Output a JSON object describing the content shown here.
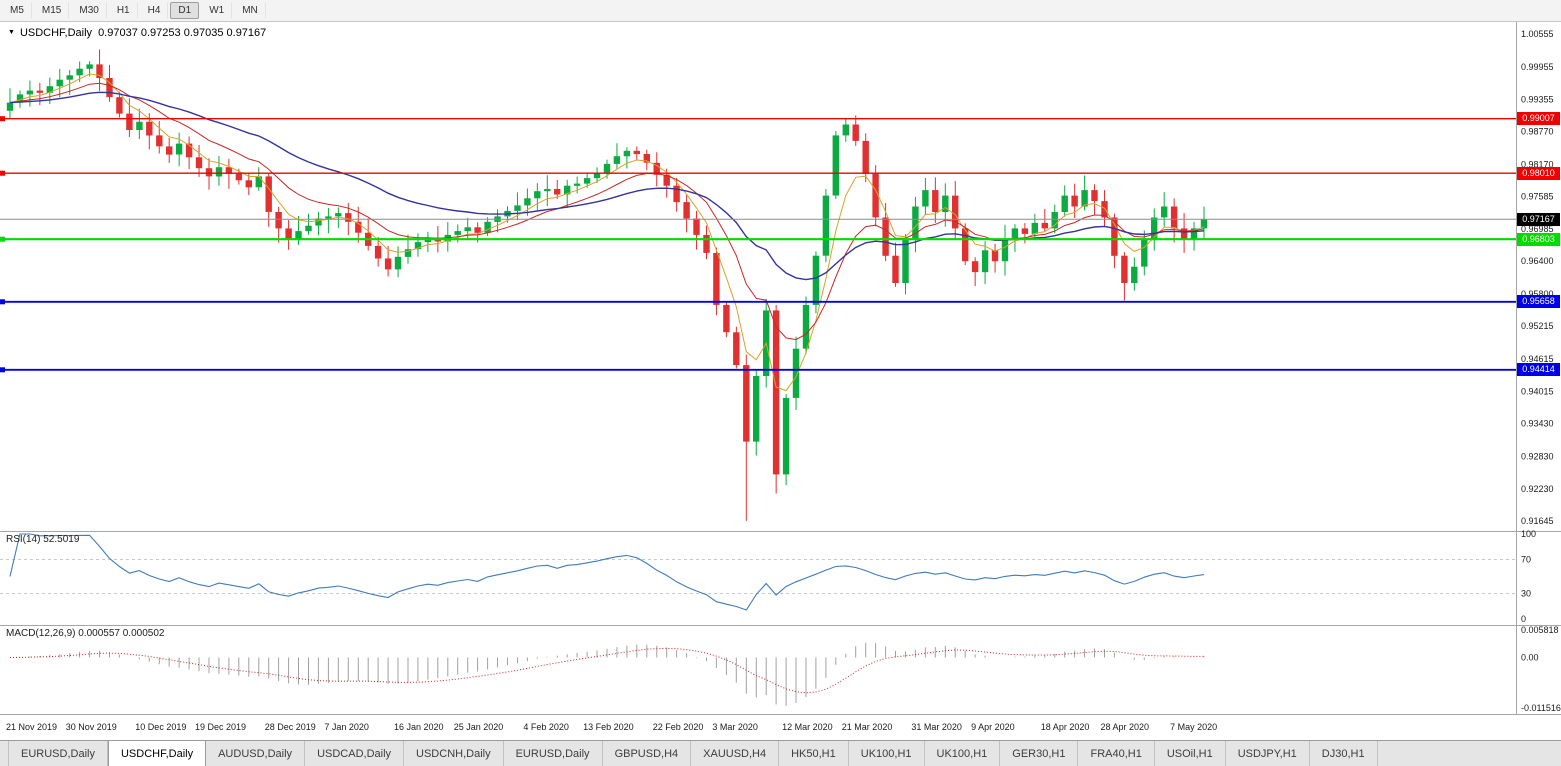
{
  "toolbar": {
    "timeframes": [
      {
        "label": "M5",
        "active": false
      },
      {
        "label": "M15",
        "active": false
      },
      {
        "label": "M30",
        "active": false
      },
      {
        "label": "H1",
        "active": false
      },
      {
        "label": "H4",
        "active": false
      },
      {
        "label": "D1",
        "active": true
      },
      {
        "label": "W1",
        "active": false
      },
      {
        "label": "MN",
        "active": false
      }
    ]
  },
  "chart": {
    "title_symbol": "USDCHF,Daily",
    "title_ohlc": "0.97037 0.97253 0.97035 0.97167",
    "current_price": "0.97167",
    "current_price_value": 0.97167,
    "price_scale": {
      "max": 1.0072,
      "min": 0.9152
    },
    "candle_colors": {
      "up": "#0cab41",
      "down": "#e03030"
    },
    "y_axis_ticks": [
      "1.00555",
      "0.99955",
      "0.99355",
      "0.98770",
      "0.98170",
      "0.97585",
      "0.96985",
      "0.96400",
      "0.95800",
      "0.95215",
      "0.94615",
      "0.94015",
      "0.93430",
      "0.92830",
      "0.92230",
      "0.91645"
    ],
    "hlines": [
      {
        "price": 0.99007,
        "label": "0.99007",
        "color": "#f00000",
        "width": 1.3
      },
      {
        "price": 0.9801,
        "label": "0.98010",
        "color": "#f00000",
        "width": 1.3
      },
      {
        "price": 0.96803,
        "label": "0.96803",
        "color": "#00dc00",
        "width": 2.2
      },
      {
        "price": 0.95658,
        "label": "0.95658",
        "color": "#0000e8",
        "width": 1.8
      },
      {
        "price": 0.94414,
        "label": "0.94414",
        "color": "#0000e8",
        "width": 1.8
      }
    ]
  },
  "chart_data": {
    "type": "candlestick",
    "symbol": "USDCHF",
    "timeframe": "Daily",
    "x_labels": [
      "21 Nov 2019",
      "30 Nov 2019",
      "10 Dec 2019",
      "19 Dec 2019",
      "28 Dec 2019",
      "7 Jan 2020",
      "16 Jan 2020",
      "25 Jan 2020",
      "4 Feb 2020",
      "13 Feb 2020",
      "22 Feb 2020",
      "3 Mar 2020",
      "12 Mar 2020",
      "21 Mar 2020",
      "31 Mar 2020",
      "9 Apr 2020",
      "18 Apr 2020",
      "28 Apr 2020",
      "7 May 2020"
    ],
    "x_label_indices": [
      0,
      6,
      13,
      19,
      26,
      32,
      39,
      45,
      52,
      58,
      65,
      71,
      78,
      84,
      91,
      97,
      104,
      110,
      117
    ],
    "candles": {
      "first_open": 0.9915,
      "closes": [
        0.993,
        0.9945,
        0.9952,
        0.9948,
        0.996,
        0.9972,
        0.998,
        0.9992,
        1.0,
        0.9975,
        0.994,
        0.991,
        0.988,
        0.9895,
        0.987,
        0.985,
        0.9835,
        0.9855,
        0.983,
        0.981,
        0.9795,
        0.9812,
        0.98,
        0.9788,
        0.9775,
        0.9795,
        0.973,
        0.97,
        0.968,
        0.9695,
        0.9705,
        0.9718,
        0.9722,
        0.9728,
        0.9712,
        0.9692,
        0.9668,
        0.9645,
        0.9625,
        0.9648,
        0.9662,
        0.9675,
        0.9683,
        0.9676,
        0.9688,
        0.9695,
        0.9702,
        0.9692,
        0.9712,
        0.9722,
        0.9732,
        0.9742,
        0.9755,
        0.9768,
        0.9772,
        0.9762,
        0.9778,
        0.9782,
        0.9792,
        0.9802,
        0.9818,
        0.9832,
        0.9842,
        0.9836,
        0.982,
        0.9798,
        0.9778,
        0.9748,
        0.9718,
        0.9688,
        0.9655,
        0.956,
        0.951,
        0.945,
        0.931,
        0.943,
        0.955,
        0.925,
        0.939,
        0.948,
        0.956,
        0.965,
        0.976,
        0.987,
        0.989,
        0.986,
        0.98,
        0.972,
        0.965,
        0.96,
        0.968,
        0.974,
        0.977,
        0.973,
        0.976,
        0.97,
        0.964,
        0.962,
        0.966,
        0.964,
        0.968,
        0.97,
        0.969,
        0.971,
        0.97,
        0.973,
        0.976,
        0.974,
        0.977,
        0.975,
        0.972,
        0.965,
        0.96,
        0.963,
        0.968,
        0.972,
        0.974,
        0.97,
        0.968,
        0.97,
        0.9717
      ],
      "wick_overrides": [
        [
          8,
          1.0006,
          null
        ],
        [
          38,
          null,
          0.9612
        ],
        [
          74,
          null,
          0.9165
        ],
        [
          77,
          null,
          0.9215
        ],
        [
          84,
          0.9901,
          null
        ],
        [
          112,
          null,
          0.9568
        ]
      ]
    },
    "moving_averages": [
      {
        "type": "ema",
        "period": 5,
        "color": "#d9a326",
        "width": 1
      },
      {
        "type": "ema",
        "period": 12,
        "color": "#c62828",
        "width": 1
      },
      {
        "type": "ema",
        "period": 30,
        "color": "#34349c",
        "width": 1.4
      }
    ],
    "horizontal_levels": [
      0.99007,
      0.9801,
      0.96803,
      0.95658,
      0.94414
    ]
  },
  "rsi": {
    "label": "RSI(14) 52.5019",
    "period": 14,
    "color": "#3f7cba",
    "levels": [
      70,
      30
    ],
    "ticks": [
      {
        "label": "100",
        "value": 100
      },
      {
        "label": "70",
        "value": 70
      },
      {
        "label": "30",
        "value": 30
      },
      {
        "label": "0",
        "value": 0
      }
    ]
  },
  "macd": {
    "label": "MACD(12,26,9) 0.000557 0.000502",
    "fast": 12,
    "slow": 26,
    "signal": 9,
    "hist_color": "#a0a0a0",
    "signal_color": "#cc2222",
    "range": {
      "max": 0.005818,
      "min": -0.011516
    },
    "ticks": [
      {
        "label": "0.005818",
        "value": 0.005818
      },
      {
        "label": "0.00",
        "value": 0
      },
      {
        "label": "-0.011516",
        "value": -0.011516
      }
    ]
  },
  "tabs": [
    {
      "label": "EURUSD,Daily",
      "active": false
    },
    {
      "label": "USDCHF,Daily",
      "active": true
    },
    {
      "label": "AUDUSD,Daily",
      "active": false
    },
    {
      "label": "USDCAD,Daily",
      "active": false
    },
    {
      "label": "USDCNH,Daily",
      "active": false
    },
    {
      "label": "EURUSD,Daily",
      "active": false
    },
    {
      "label": "GBPUSD,H4",
      "active": false
    },
    {
      "label": "XAUUSD,H4",
      "active": false
    },
    {
      "label": "HK50,H1",
      "active": false
    },
    {
      "label": "UK100,H1",
      "active": false
    },
    {
      "label": "UK100,H1",
      "active": false
    },
    {
      "label": "GER30,H1",
      "active": false
    },
    {
      "label": "FRA40,H1",
      "active": false
    },
    {
      "label": "USOil,H1",
      "active": false
    },
    {
      "label": "USDJPY,H1",
      "active": false
    },
    {
      "label": "DJ30,H1",
      "active": false
    }
  ]
}
